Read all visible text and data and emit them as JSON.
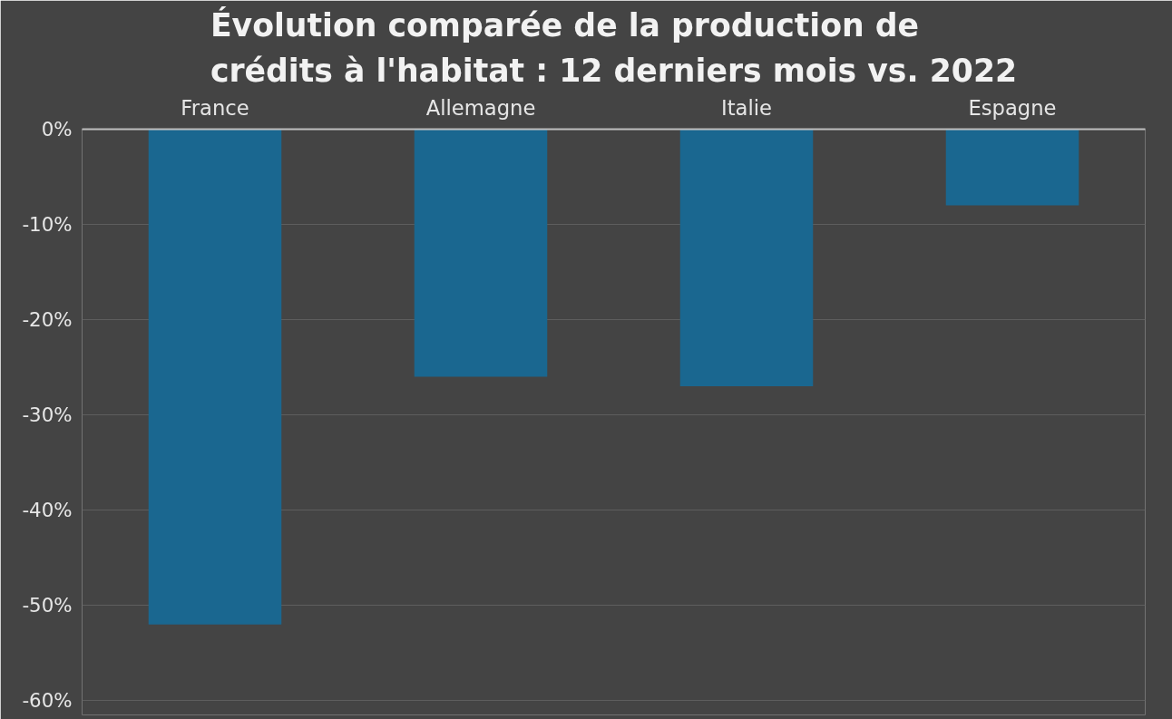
{
  "chart_data": {
    "type": "bar",
    "title": "Évolution comparée de la production de\ncrédits à l'habitat : 12 derniers mois vs. 2022",
    "categories": [
      "France",
      "Allemagne",
      "Italie",
      "Espagne"
    ],
    "values": [
      -52,
      -26,
      -27,
      -8
    ],
    "color": "#1a6790",
    "ylim": [
      -61.5,
      0
    ],
    "yticks": [
      {
        "value": 0,
        "label": "0%"
      },
      {
        "value": -10,
        "label": "-10%"
      },
      {
        "value": -20,
        "label": "-20%"
      },
      {
        "value": -30,
        "label": "-30%"
      },
      {
        "value": -40,
        "label": "-40%"
      },
      {
        "value": -50,
        "label": "-50%"
      },
      {
        "value": -60,
        "label": "-60%"
      }
    ],
    "grid": "y"
  }
}
